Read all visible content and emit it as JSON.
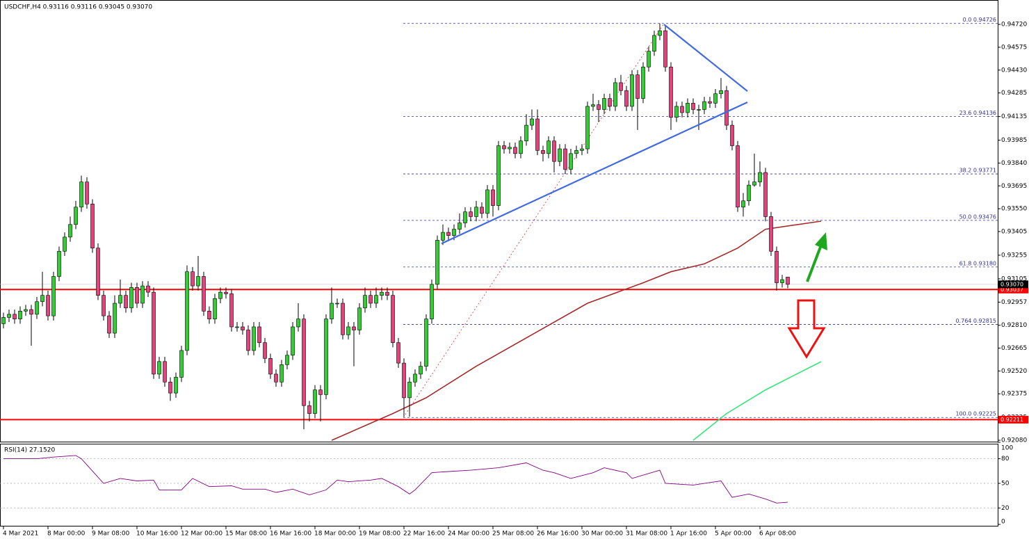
{
  "chart_data": [
    {
      "type": "candlestick",
      "title": "USDCHF,H4  0.93116 0.93116 0.93045 0.93070",
      "up_color": "#32cd32",
      "down_color": "#e4437e",
      "open": [
        0.9282,
        0.9286,
        0.9288,
        0.9285,
        0.929,
        0.9291,
        0.9288,
        0.9296,
        0.93,
        0.9287,
        0.9312,
        0.9328,
        0.9337,
        0.9345,
        0.9356,
        0.9372,
        0.9358,
        0.933,
        0.93,
        0.9287,
        0.9276,
        0.9295,
        0.93,
        0.9292,
        0.9305,
        0.9295,
        0.9306,
        0.9302,
        0.925,
        0.9258,
        0.9245,
        0.9238,
        0.9248,
        0.9265,
        0.9315,
        0.9306,
        0.9312,
        0.929,
        0.9285,
        0.9298,
        0.9302,
        0.9301,
        0.928,
        0.928,
        0.9278,
        0.9265,
        0.928,
        0.927,
        0.926,
        0.925,
        0.9245,
        0.9256,
        0.9262,
        0.928,
        0.9285,
        0.923,
        0.9225,
        0.924,
        0.9237,
        0.9285,
        0.9295,
        0.9295,
        0.9275,
        0.928,
        0.9278,
        0.9292,
        0.93,
        0.9295,
        0.93,
        0.9302,
        0.93,
        0.927,
        0.9257,
        0.9235,
        0.9245,
        0.925,
        0.9255,
        0.9285,
        0.9307,
        0.9335,
        0.934,
        0.9338,
        0.9342,
        0.9346,
        0.9353,
        0.935,
        0.9356,
        0.9352,
        0.9367,
        0.9357,
        0.9395,
        0.9393,
        0.9394,
        0.939,
        0.9398,
        0.9408,
        0.9412,
        0.9392,
        0.939,
        0.9398,
        0.9385,
        0.9393,
        0.938,
        0.939,
        0.9392,
        0.9393,
        0.942,
        0.9421,
        0.9418,
        0.9425,
        0.942,
        0.9435,
        0.943,
        0.942,
        0.944,
        0.9425,
        0.9445,
        0.9455,
        0.9465,
        0.9468,
        0.9445,
        0.9413,
        0.942,
        0.9416,
        0.9422,
        0.9418,
        0.9418,
        0.9423,
        0.9422,
        0.9428,
        0.943,
        0.9408,
        0.9395,
        0.9356,
        0.936,
        0.937,
        0.9372,
        0.9378,
        0.935,
        0.9328,
        0.9308,
        0.93116
      ],
      "high": [
        0.9289,
        0.9291,
        0.9291,
        0.9293,
        0.9294,
        0.9294,
        0.9299,
        0.9315,
        0.9303,
        0.9315,
        0.9331,
        0.934,
        0.935,
        0.936,
        0.9376,
        0.9375,
        0.9361,
        0.9333,
        0.9303,
        0.929,
        0.93,
        0.931,
        0.9303,
        0.9308,
        0.9308,
        0.9309,
        0.9309,
        0.9305,
        0.9261,
        0.9261,
        0.9248,
        0.9251,
        0.9268,
        0.9319,
        0.9318,
        0.9325,
        0.9315,
        0.9293,
        0.9301,
        0.9305,
        0.9305,
        0.9304,
        0.9283,
        0.9283,
        0.9281,
        0.9283,
        0.9283,
        0.9273,
        0.9263,
        0.9253,
        0.9259,
        0.9265,
        0.9283,
        0.9295,
        0.9288,
        0.9233,
        0.9243,
        0.9243,
        0.9288,
        0.9305,
        0.9298,
        0.9298,
        0.9283,
        0.9283,
        0.9295,
        0.9305,
        0.9303,
        0.9305,
        0.9305,
        0.9305,
        0.9303,
        0.9273,
        0.926,
        0.9248,
        0.9253,
        0.9258,
        0.9288,
        0.931,
        0.9338,
        0.9345,
        0.9343,
        0.9345,
        0.9352,
        0.9356,
        0.9356,
        0.936,
        0.9359,
        0.937,
        0.937,
        0.9398,
        0.9398,
        0.9397,
        0.9397,
        0.9401,
        0.9415,
        0.9418,
        0.9418,
        0.9395,
        0.9401,
        0.9401,
        0.9396,
        0.9396,
        0.9393,
        0.9395,
        0.9396,
        0.9423,
        0.9428,
        0.9424,
        0.9428,
        0.9428,
        0.9438,
        0.944,
        0.9433,
        0.9443,
        0.9443,
        0.9448,
        0.9458,
        0.9468,
        0.94726,
        0.9471,
        0.9448,
        0.9423,
        0.9423,
        0.9425,
        0.9425,
        0.9421,
        0.9426,
        0.9426,
        0.9431,
        0.9438,
        0.9433,
        0.9411,
        0.9398,
        0.9365,
        0.9373,
        0.939,
        0.9385,
        0.9381,
        0.9353,
        0.9331,
        0.9313,
        0.93116
      ],
      "low": [
        0.9279,
        0.9283,
        0.9282,
        0.9282,
        0.9287,
        0.9268,
        0.9285,
        0.9293,
        0.9284,
        0.9284,
        0.9309,
        0.9325,
        0.9334,
        0.9342,
        0.9353,
        0.9355,
        0.9327,
        0.9297,
        0.9284,
        0.9273,
        0.9273,
        0.9292,
        0.9289,
        0.9289,
        0.9292,
        0.9292,
        0.9299,
        0.9247,
        0.9247,
        0.9242,
        0.9233,
        0.9235,
        0.9245,
        0.9262,
        0.9303,
        0.9303,
        0.9287,
        0.9282,
        0.9282,
        0.9295,
        0.9298,
        0.9277,
        0.9277,
        0.9275,
        0.9262,
        0.9262,
        0.9267,
        0.9257,
        0.9247,
        0.9242,
        0.9242,
        0.9253,
        0.9259,
        0.9277,
        0.9215,
        0.922,
        0.9222,
        0.922,
        0.9234,
        0.9282,
        0.9292,
        0.9272,
        0.9272,
        0.9255,
        0.9275,
        0.9289,
        0.9292,
        0.9292,
        0.9297,
        0.9297,
        0.9267,
        0.9254,
        0.9223,
        0.9223,
        0.9242,
        0.9247,
        0.9252,
        0.9282,
        0.9304,
        0.9332,
        0.9335,
        0.9335,
        0.9339,
        0.9343,
        0.9347,
        0.9347,
        0.9349,
        0.9349,
        0.935,
        0.9354,
        0.939,
        0.939,
        0.9387,
        0.9387,
        0.9395,
        0.9405,
        0.9389,
        0.9385,
        0.9387,
        0.9378,
        0.9382,
        0.9377,
        0.9377,
        0.9387,
        0.9389,
        0.939,
        0.9417,
        0.941,
        0.9415,
        0.9417,
        0.9417,
        0.9427,
        0.9417,
        0.9417,
        0.9405,
        0.9422,
        0.9442,
        0.9452,
        0.9462,
        0.9442,
        0.9405,
        0.941,
        0.9413,
        0.9413,
        0.9415,
        0.9405,
        0.9415,
        0.9419,
        0.9419,
        0.9425,
        0.9405,
        0.9392,
        0.9353,
        0.935,
        0.9357,
        0.9369,
        0.9369,
        0.9347,
        0.9325,
        0.9303,
        0.9305,
        0.93045
      ],
      "close": [
        0.9286,
        0.9288,
        0.9285,
        0.929,
        0.9291,
        0.9288,
        0.9296,
        0.93,
        0.9287,
        0.9312,
        0.9328,
        0.9337,
        0.9345,
        0.9356,
        0.9372,
        0.9358,
        0.933,
        0.93,
        0.9287,
        0.9276,
        0.9295,
        0.93,
        0.9292,
        0.9305,
        0.9295,
        0.9306,
        0.9302,
        0.925,
        0.9258,
        0.9245,
        0.9238,
        0.9248,
        0.9265,
        0.9315,
        0.9306,
        0.9312,
        0.929,
        0.9285,
        0.9298,
        0.9302,
        0.9301,
        0.928,
        0.928,
        0.9278,
        0.9265,
        0.928,
        0.927,
        0.926,
        0.925,
        0.9245,
        0.9256,
        0.9262,
        0.928,
        0.9285,
        0.923,
        0.9225,
        0.924,
        0.9237,
        0.9285,
        0.9295,
        0.9295,
        0.9275,
        0.928,
        0.9278,
        0.9292,
        0.93,
        0.9295,
        0.93,
        0.9302,
        0.93,
        0.927,
        0.9257,
        0.9235,
        0.9245,
        0.925,
        0.9255,
        0.9285,
        0.9307,
        0.9335,
        0.934,
        0.9338,
        0.9342,
        0.9346,
        0.9353,
        0.935,
        0.9356,
        0.9352,
        0.9367,
        0.9357,
        0.9395,
        0.9393,
        0.9394,
        0.939,
        0.9398,
        0.9408,
        0.9412,
        0.9392,
        0.939,
        0.9398,
        0.9385,
        0.9393,
        0.938,
        0.939,
        0.9392,
        0.9393,
        0.942,
        0.9421,
        0.9418,
        0.9425,
        0.942,
        0.9435,
        0.943,
        0.942,
        0.944,
        0.9425,
        0.9445,
        0.9455,
        0.9465,
        0.9468,
        0.9445,
        0.9413,
        0.942,
        0.9416,
        0.9422,
        0.9418,
        0.9418,
        0.9423,
        0.9422,
        0.9428,
        0.943,
        0.9408,
        0.9395,
        0.9356,
        0.936,
        0.937,
        0.9372,
        0.9378,
        0.935,
        0.9328,
        0.9308,
        0.931,
        0.9307
      ],
      "xlim": [
        -0.625,
        178.75
      ],
      "ylim": [
        0.92067,
        0.94875
      ],
      "yticks": [
        {
          "value": 0.9472,
          "label": "0.94720"
        },
        0.94575,
        {
          "value": 0.9443,
          "label": "0.94430"
        },
        0.94285,
        0.94135,
        0.93985,
        {
          "value": 0.9384,
          "label": "0.93840"
        },
        0.93695,
        {
          "value": 0.9355,
          "label": "0.93550"
        },
        0.93405,
        0.93255,
        0.93105,
        0.92957,
        {
          "value": 0.9281,
          "label": "0.92810"
        },
        0.92665,
        {
          "value": 0.9252,
          "label": "0.92520"
        },
        0.92375,
        0.92225,
        {
          "value": 0.9208,
          "label": "0.92080"
        }
      ],
      "fib_levels": [
        {
          "value": 0.94726,
          "label": "0.0 0.94726"
        },
        {
          "value": 0.94136,
          "label": "23.6 0.94136"
        },
        {
          "value": 0.93771,
          "label": "38.2 0.93771"
        },
        {
          "value": 0.93476,
          "label": "50.0 0.93476"
        },
        {
          "value": 0.9318,
          "label": "61.8 0.93180"
        },
        {
          "value": 0.92815,
          "label": "0.764 0.92815"
        },
        {
          "value": 0.92225,
          "label": "100.0 0.92225"
        }
      ],
      "fib_color": "#333399",
      "fib_trend": {
        "x": [
          71.9,
          118.75
        ],
        "values": [
          0.92225,
          0.94726
        ],
        "color": "#e0302a"
      },
      "levels": [
        {
          "value": 0.93037,
          "label": "0.93037",
          "color": "#ff0000"
        },
        {
          "value": 0.92211,
          "label": "0.92211",
          "color": "#ff0000"
        }
      ],
      "last_price": {
        "value": 0.9307,
        "label": "0.93070",
        "color": "#000000"
      },
      "trendlines": [
        {
          "x": [
            78.75,
            133.75
          ],
          "values": [
            0.93329,
            0.94226
          ],
          "color": "#4169e1"
        },
        {
          "x": [
            118.75,
            133.75
          ],
          "values": [
            0.9472,
            0.94296
          ],
          "color": "#4169e1"
        }
      ],
      "moving_averages": [
        {
          "color": "#a52a2a",
          "x": [
            59,
            70,
            76,
            85,
            95,
            105,
            115,
            120,
            126,
            132,
            137,
            147
          ],
          "values": [
            0.9208,
            0.9225,
            0.9235,
            0.9255,
            0.9275,
            0.9295,
            0.9308,
            0.9315,
            0.932,
            0.933,
            0.9342,
            0.93471
          ]
        },
        {
          "color": "#32e67a",
          "x": [
            124,
            130,
            137,
            147
          ],
          "values": [
            0.9208,
            0.9225,
            0.924,
            0.92579
          ]
        }
      ]
    },
    {
      "type": "line",
      "title": "RSI(14) 27.1520",
      "color": "#800080",
      "x": [
        0,
        6,
        9,
        13,
        14,
        18,
        21,
        24,
        27,
        28,
        32,
        34,
        37,
        41,
        43,
        47,
        49,
        52,
        55,
        58,
        60,
        62,
        66,
        68,
        71,
        73,
        74,
        77,
        79,
        84,
        89,
        94,
        97,
        99,
        102,
        106,
        108,
        112,
        113,
        118,
        119,
        124,
        129,
        131,
        134,
        137,
        139,
        141
      ],
      "values": [
        80,
        80,
        82,
        84,
        80,
        50,
        56,
        53,
        54,
        42,
        42,
        56,
        46,
        47,
        43,
        43,
        39,
        43,
        36,
        42,
        54,
        52,
        54,
        56,
        46,
        37,
        42,
        63,
        64,
        66,
        69,
        75,
        66,
        63,
        56,
        63,
        69,
        63,
        56,
        66,
        50,
        48,
        53,
        33,
        37,
        31,
        26,
        27
      ],
      "xlim": [
        -0.625,
        178.75
      ],
      "ylim": [
        0,
        100
      ],
      "yticks": [
        100,
        80,
        50,
        20,
        0
      ],
      "grid_levels": [
        80,
        50,
        20
      ],
      "xticks": [
        {
          "value": 0,
          "label": "4 Mar 2021"
        },
        {
          "value": 8,
          "label": "8 Mar 00:00"
        },
        {
          "value": 16,
          "label": "9 Mar 08:00"
        },
        {
          "value": 24,
          "label": "10 Mar 16:00"
        },
        {
          "value": 32,
          "label": "12 Mar 00:00"
        },
        {
          "value": 40,
          "label": "15 Mar 08:00"
        },
        {
          "value": 48,
          "label": "16 Mar 16:00"
        },
        {
          "value": 56,
          "label": "18 Mar 00:00"
        },
        {
          "value": 64,
          "label": "19 Mar 08:00"
        },
        {
          "value": 72,
          "label": "22 Mar 16:00"
        },
        {
          "value": 80,
          "label": "24 Mar 00:00"
        },
        {
          "value": 88,
          "label": "25 Mar 08:00"
        },
        {
          "value": 96,
          "label": "26 Mar 16:00"
        },
        {
          "value": 104,
          "label": "30 Mar 00:00"
        },
        {
          "value": 112,
          "label": "31 Mar 08:00"
        },
        {
          "value": 120,
          "label": "1 Apr 16:00"
        },
        {
          "value": 128,
          "label": "5 Apr 00:00"
        },
        {
          "value": 136,
          "label": "6 Apr 08:00"
        }
      ]
    }
  ]
}
